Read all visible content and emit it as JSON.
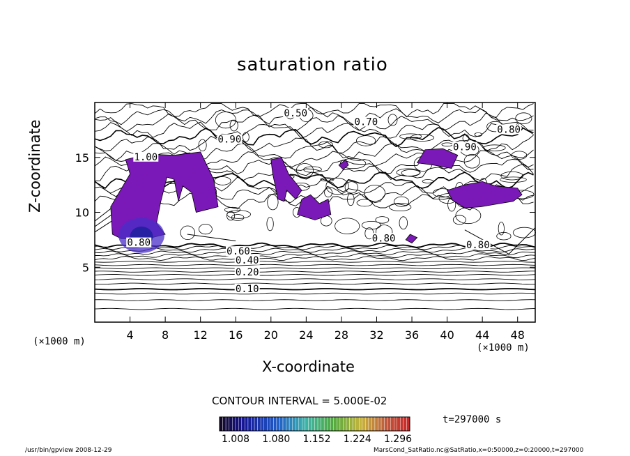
{
  "chart_data": {
    "type": "contour",
    "title": "saturation ratio",
    "xlabel": "X-coordinate",
    "ylabel": "Z-coordinate",
    "x_unit": "(×1000 m)",
    "x_ticks": [
      4,
      8,
      12,
      16,
      20,
      24,
      28,
      32,
      36,
      40,
      44,
      48
    ],
    "y_ticks": [
      5,
      10,
      15
    ],
    "xlim": [
      0,
      50
    ],
    "ylim": [
      0,
      20
    ],
    "contour_labels": [
      {
        "text": "0.10",
        "x": 17.3,
        "z": 3.0
      },
      {
        "text": "0.20",
        "x": 17.3,
        "z": 4.5
      },
      {
        "text": "0.40",
        "x": 17.3,
        "z": 5.6
      },
      {
        "text": "0.60",
        "x": 16.3,
        "z": 6.4
      },
      {
        "text": "0.80",
        "x": 5.0,
        "z": 7.2
      },
      {
        "text": "0.80",
        "x": 32.8,
        "z": 7.6
      },
      {
        "text": "0.80",
        "x": 43.5,
        "z": 7.0
      },
      {
        "text": "1.00",
        "x": 5.8,
        "z": 15.0
      },
      {
        "text": "0.50",
        "x": 22.8,
        "z": 19.0
      },
      {
        "text": "0.70",
        "x": 30.8,
        "z": 18.2
      },
      {
        "text": "0.90",
        "x": 15.3,
        "z": 16.6
      },
      {
        "text": "0.80",
        "x": 47.0,
        "z": 17.5
      },
      {
        "text": "0.90",
        "x": 42.0,
        "z": 15.9
      }
    ],
    "shaded_threshold": 1.0,
    "shaded_color": "#7a18b8",
    "colorbar": {
      "min": 1.008,
      "max": 1.296,
      "tick_labels": [
        "1.008",
        "1.080",
        "1.152",
        "1.224",
        "1.296"
      ]
    },
    "contour_interval": "CONTOUR INTERVAL = 5.000E-02",
    "time": "t=297000 s"
  },
  "footer": {
    "program": "/usr/bin/gpview   2008-12-29",
    "source": "MarsCond_SatRatio.nc@SatRatio,x=0:50000,z=0:20000,t=297000"
  }
}
